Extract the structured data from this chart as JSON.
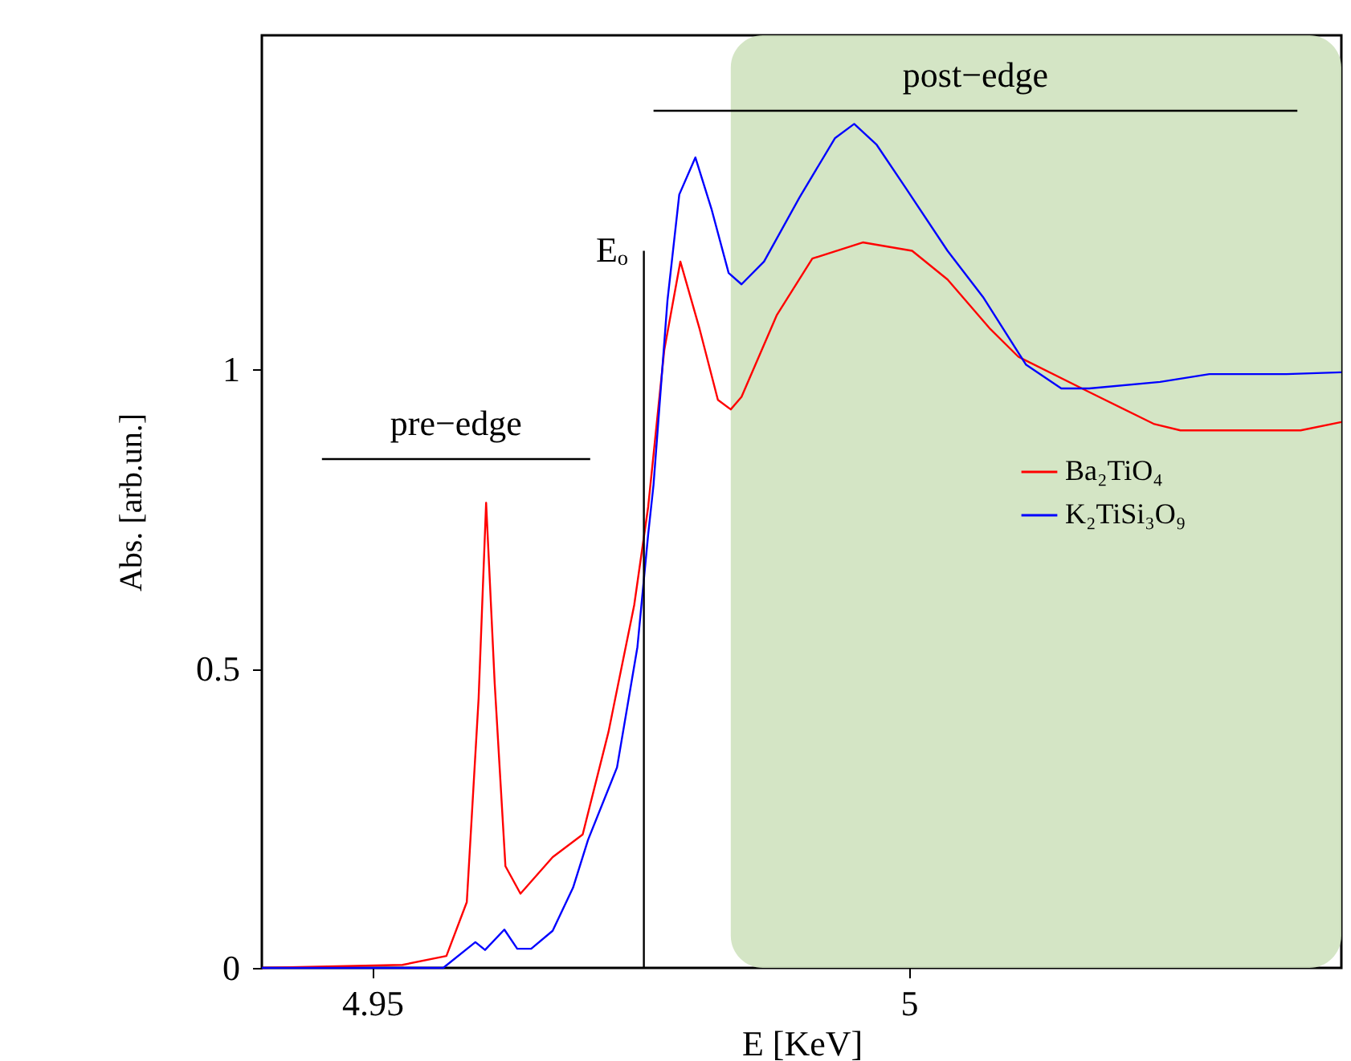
{
  "chart_data": {
    "type": "line",
    "xlabel": "E [KeV]",
    "ylabel": "Abs. [arb.un.]",
    "xlim": [
      4.9397,
      5.0403
    ],
    "ylim": [
      0,
      1.558
    ],
    "xticks": [
      4.95,
      5
    ],
    "yticks": [
      0,
      0.5,
      1
    ],
    "grid": false,
    "legend": "right",
    "marker": "none",
    "line_style": "solid",
    "bands": [
      {
        "axis": "x",
        "from": 4.9834,
        "to": 5.0403,
        "color": "#cfe2bf"
      }
    ],
    "annotations": [
      "pre−edge",
      "post−edge",
      "Eₒ"
    ],
    "series": [
      {
        "name": "Ba₂TiO₄",
        "color": "#ff0000",
        "x": [
          4.9397,
          4.9528,
          4.9569,
          4.9588,
          4.9599,
          4.9606,
          4.9614,
          4.9624,
          4.9638,
          4.9668,
          4.9696,
          4.972,
          4.9744,
          4.9757,
          4.9772,
          4.9787,
          4.9805,
          4.9822,
          4.9834,
          4.9844,
          4.9877,
          4.991,
          4.9957,
          5.0003,
          5.0036,
          5.0076,
          5.0102,
          5.0168,
          5.0228,
          5.0253,
          5.0365,
          5.0403
        ],
        "values": [
          0,
          0.005,
          0.02,
          0.11,
          0.45,
          0.777,
          0.475,
          0.17,
          0.124,
          0.185,
          0.223,
          0.394,
          0.606,
          0.77,
          1.032,
          1.18,
          1.067,
          0.949,
          0.933,
          0.954,
          1.091,
          1.185,
          1.212,
          1.198,
          1.15,
          1.067,
          1.021,
          0.962,
          0.909,
          0.898,
          0.898,
          0.912
        ]
      },
      {
        "name": "K₂TiSi₃O₉",
        "color": "#0000ff",
        "x": [
          4.9397,
          4.9566,
          4.9596,
          4.9605,
          4.9623,
          4.9635,
          4.9648,
          4.9668,
          4.9687,
          4.9701,
          4.9728,
          4.9747,
          4.9757,
          4.9762,
          4.9775,
          4.9786,
          4.9801,
          4.9816,
          4.9832,
          4.9844,
          4.9865,
          4.9898,
          4.9931,
          4.9949,
          4.997,
          4.9997,
          5.0036,
          5.0069,
          5.0109,
          5.0142,
          5.0168,
          5.0234,
          5.028,
          5.0352,
          5.0403
        ],
        "values": [
          0,
          0,
          0.043,
          0.03,
          0.064,
          0.032,
          0.032,
          0.062,
          0.134,
          0.214,
          0.335,
          0.536,
          0.724,
          0.807,
          1.115,
          1.292,
          1.354,
          1.268,
          1.161,
          1.142,
          1.18,
          1.287,
          1.386,
          1.41,
          1.375,
          1.303,
          1.198,
          1.121,
          1.008,
          0.968,
          0.968,
          0.979,
          0.992,
          0.992,
          0.995
        ]
      },
      {
        "color": "#000000",
        "x": [
          4.9453,
          4.9703
        ],
        "values": [
          0.85,
          0.85
        ]
      },
      {
        "color": "#000000",
        "x": [
          4.9762,
          5.0362
        ],
        "values": [
          1.432,
          1.432
        ]
      },
      {
        "color": "#000000",
        "x": [
          4.9753,
          4.9753
        ],
        "values": [
          0,
          1.198
        ]
      }
    ]
  }
}
